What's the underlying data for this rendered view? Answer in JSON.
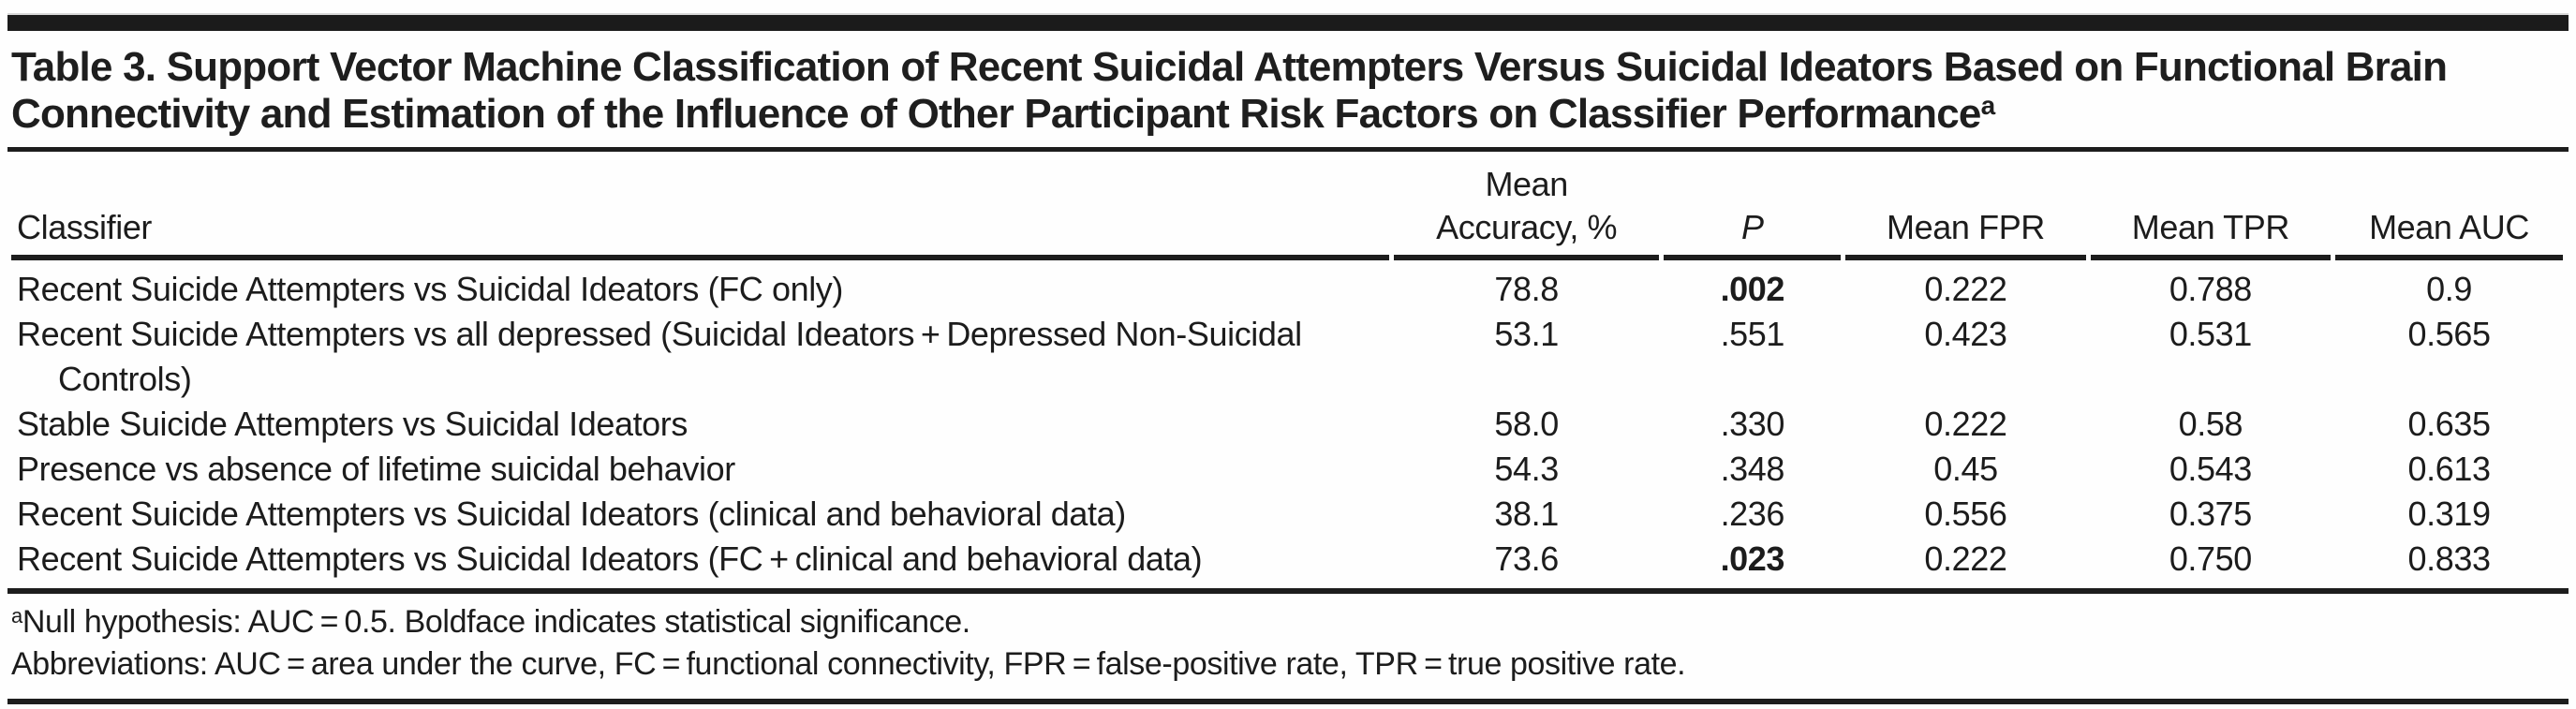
{
  "table": {
    "title": "Table 3. Support Vector Machine Classification of Recent Suicidal Attempters Versus Suicidal Ideators Based on Functional Brain Connectivity and Estimation of the Influence of Other Participant Risk Factors on Classifier Performance",
    "title_footnote_marker": "a",
    "columns": [
      {
        "label": "Classifier"
      },
      {
        "label": "Mean Accuracy, %",
        "lines": [
          "Mean",
          "Accuracy, %"
        ]
      },
      {
        "label": "P",
        "italic": true
      },
      {
        "label": "Mean FPR"
      },
      {
        "label": "Mean TPR"
      },
      {
        "label": "Mean AUC"
      }
    ],
    "rows": [
      {
        "classifier": "Recent Suicide Attempters vs Suicidal Ideators (FC only)",
        "mean_accuracy": "78.8",
        "p": ".002",
        "p_bold": true,
        "mean_fpr": "0.222",
        "mean_tpr": "0.788",
        "mean_auc": "0.9"
      },
      {
        "classifier": "Recent Suicide Attempters vs all depressed (Suicidal Ideators + Depressed Non-Suicidal Controls)",
        "mean_accuracy": "53.1",
        "p": ".551",
        "p_bold": false,
        "mean_fpr": "0.423",
        "mean_tpr": "0.531",
        "mean_auc": "0.565"
      },
      {
        "classifier": "Stable Suicide Attempters vs Suicidal Ideators",
        "mean_accuracy": "58.0",
        "p": ".330",
        "p_bold": false,
        "mean_fpr": "0.222",
        "mean_tpr": "0.58",
        "mean_auc": "0.635"
      },
      {
        "classifier": "Presence vs absence of lifetime suicidal behavior",
        "mean_accuracy": "54.3",
        "p": ".348",
        "p_bold": false,
        "mean_fpr": "0.45",
        "mean_tpr": "0.543",
        "mean_auc": "0.613"
      },
      {
        "classifier": "Recent Suicide Attempters vs Suicidal Ideators (clinical and behavioral data)",
        "mean_accuracy": "38.1",
        "p": ".236",
        "p_bold": false,
        "mean_fpr": "0.556",
        "mean_tpr": "0.375",
        "mean_auc": "0.319"
      },
      {
        "classifier": "Recent Suicide Attempters vs Suicidal Ideators (FC + clinical and behavioral data)",
        "mean_accuracy": "73.6",
        "p": ".023",
        "p_bold": true,
        "mean_fpr": "0.222",
        "mean_tpr": "0.750",
        "mean_auc": "0.833"
      }
    ],
    "footnotes": [
      {
        "marker": "a",
        "text": "Null hypothesis: AUC = 0.5. Boldface indicates statistical significance."
      },
      {
        "marker": "",
        "text": "Abbreviations: AUC = area under the curve, FC = functional connectivity, FPR = false-positive rate, TPR = true positive rate."
      }
    ],
    "colors": {
      "text": "#1c1c1c",
      "rule": "#1d1d1d",
      "top_bar": "#1b1b1b",
      "background": "#fefefe"
    }
  }
}
